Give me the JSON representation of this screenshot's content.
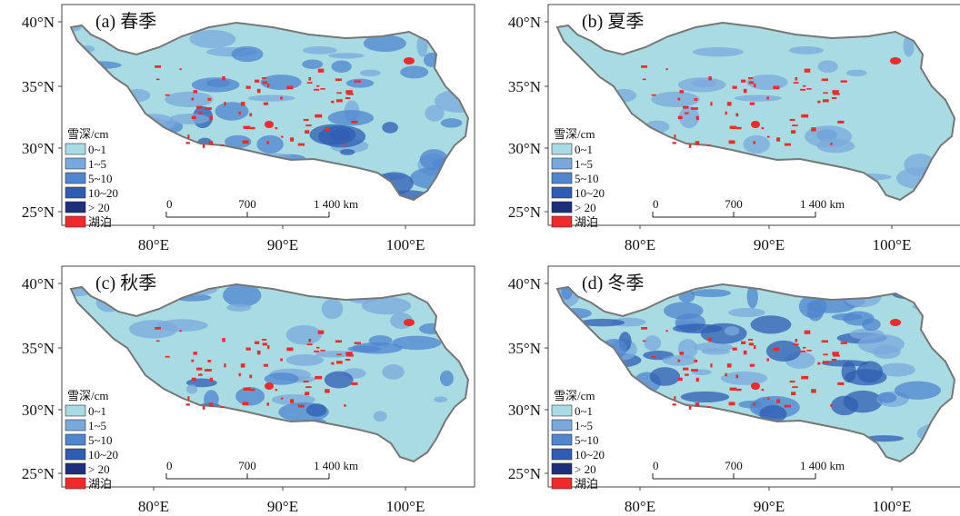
{
  "panels": [
    {
      "title": "(a) 春季"
    },
    {
      "title": "(b) 夏季"
    },
    {
      "title": "(c) 秋季"
    },
    {
      "title": "(d) 冬季"
    }
  ],
  "latitude_labels": [
    "40°N",
    "35°N",
    "30°N",
    "25°N"
  ],
  "longitude_labels": [
    "80°E",
    "90°E",
    "100°E"
  ],
  "legend": {
    "title": "雪深/cm",
    "items": [
      "0~1",
      "1~5",
      "5~10",
      "10~20",
      "> 20",
      "湖泊"
    ]
  },
  "scale_bar": {
    "labels": [
      "0",
      "700",
      "1 400 km"
    ]
  }
}
